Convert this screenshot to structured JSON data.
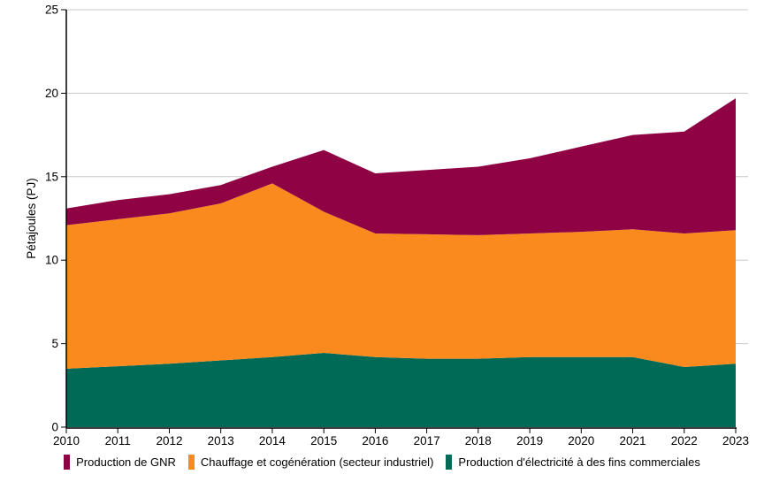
{
  "chart_data": {
    "type": "area",
    "stacked": true,
    "title": "",
    "xlabel": "",
    "ylabel": "Pétajoules (PJ)",
    "ylim": [
      0,
      25
    ],
    "yticks": [
      0,
      5,
      10,
      15,
      20,
      25
    ],
    "grid": "horizontal",
    "legend_position": "bottom",
    "categories": [
      "2010",
      "2011",
      "2012",
      "2013",
      "2014",
      "2015",
      "2016",
      "2017",
      "2018",
      "2019",
      "2020",
      "2021",
      "2022",
      "2023"
    ],
    "series": [
      {
        "name": "Production d'électricité à des fins commerciales",
        "color": "#006A57",
        "values": [
          3.5,
          3.65,
          3.8,
          4.0,
          4.2,
          4.45,
          4.2,
          4.1,
          4.1,
          4.2,
          4.2,
          4.2,
          3.6,
          3.8
        ]
      },
      {
        "name": "Chauffage et cogénération (secteur industriel)",
        "color": "#FA8A1E",
        "values": [
          8.6,
          8.8,
          9.0,
          9.4,
          10.4,
          8.45,
          7.4,
          7.45,
          7.4,
          7.4,
          7.5,
          7.65,
          8.0,
          8.0
        ]
      },
      {
        "name": "Production de GNR",
        "color": "#8F0243",
        "values": [
          1.0,
          1.15,
          1.15,
          1.1,
          1.0,
          3.7,
          3.6,
          3.85,
          4.1,
          4.5,
          5.1,
          5.65,
          6.1,
          7.9
        ]
      }
    ],
    "stacked_totals": [
      13.1,
      13.6,
      13.95,
      14.5,
      15.6,
      16.6,
      15.2,
      15.4,
      15.6,
      16.1,
      16.8,
      17.5,
      17.7,
      19.7
    ],
    "legend": [
      {
        "label": "Production de GNR",
        "color": "#8F0243"
      },
      {
        "label": "Chauffage et cogénération (secteur industriel)",
        "color": "#FA8A1E"
      },
      {
        "label": "Production d'électricité à des fins commerciales",
        "color": "#006A57"
      }
    ],
    "colors": {
      "grid": "#C8C8C8",
      "axis": "#000000",
      "text": "#000000",
      "background": "#FFFFFF"
    }
  }
}
